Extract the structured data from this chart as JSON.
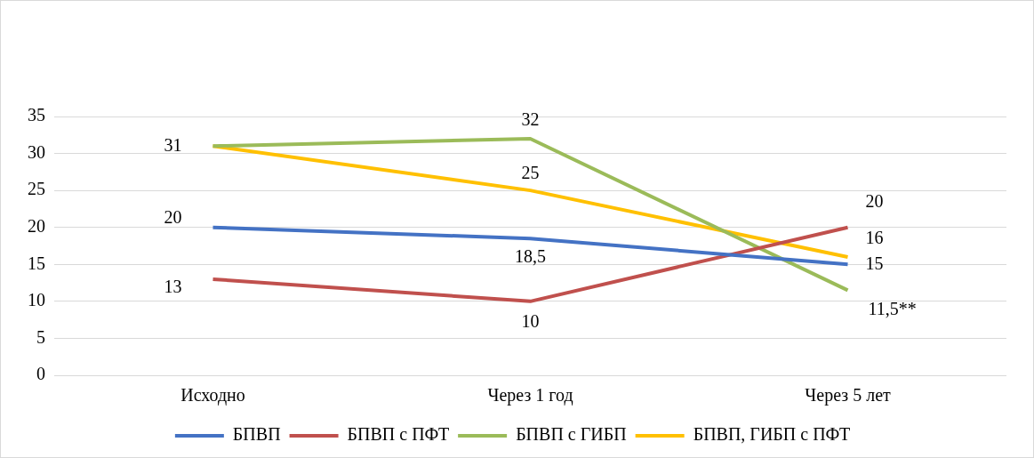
{
  "chart_data": {
    "type": "line",
    "categories": [
      "Исходно",
      "Через 1 год",
      "Через 5 лет"
    ],
    "series": [
      {
        "name": "БПВП",
        "color": "#4472c4",
        "values": [
          20,
          18.5,
          15
        ],
        "value_labels": [
          "20",
          "18,5",
          "15"
        ]
      },
      {
        "name": "БПВП с ПФТ",
        "color": "#c0504d",
        "values": [
          13,
          10,
          20
        ],
        "value_labels": [
          "13",
          "10",
          "20"
        ]
      },
      {
        "name": "БПВП с ГИБП",
        "color": "#9bbb59",
        "values": [
          31,
          32,
          11.5
        ],
        "value_labels": [
          null,
          "32",
          "11,5**"
        ]
      },
      {
        "name": "БПВП, ГИБП с ПФТ",
        "color": "#ffc000",
        "values": [
          31,
          25,
          16
        ],
        "value_labels": [
          "31",
          "25",
          "16"
        ]
      }
    ],
    "ylim": [
      0,
      35
    ],
    "yticks": [
      0,
      5,
      10,
      15,
      20,
      25,
      30,
      35
    ],
    "grid": "y",
    "legend": "bottom",
    "marker": "none",
    "line_style": "solid"
  }
}
